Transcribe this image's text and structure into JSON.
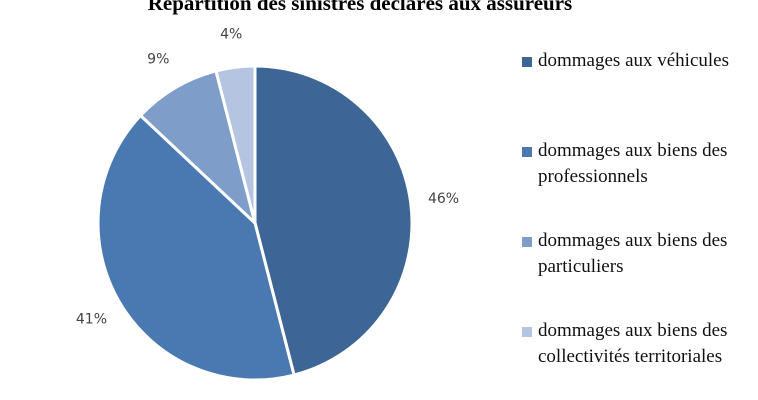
{
  "chart_data": {
    "type": "pie",
    "title": "Répartition des sinistres déclarés aux assureurs",
    "categories": [
      "dommages aux véhicules",
      "dommages aux biens des professionnels",
      "dommages aux biens des particuliers",
      "dommages aux biens des collectivités territoriales"
    ],
    "values": [
      46,
      41,
      9,
      4
    ],
    "value_labels": [
      "46%",
      "41%",
      "9%",
      "4%"
    ],
    "colors": [
      "#3d6595",
      "#4a79b2",
      "#7f9dc9",
      "#b5c5e1"
    ],
    "legend": "right"
  }
}
